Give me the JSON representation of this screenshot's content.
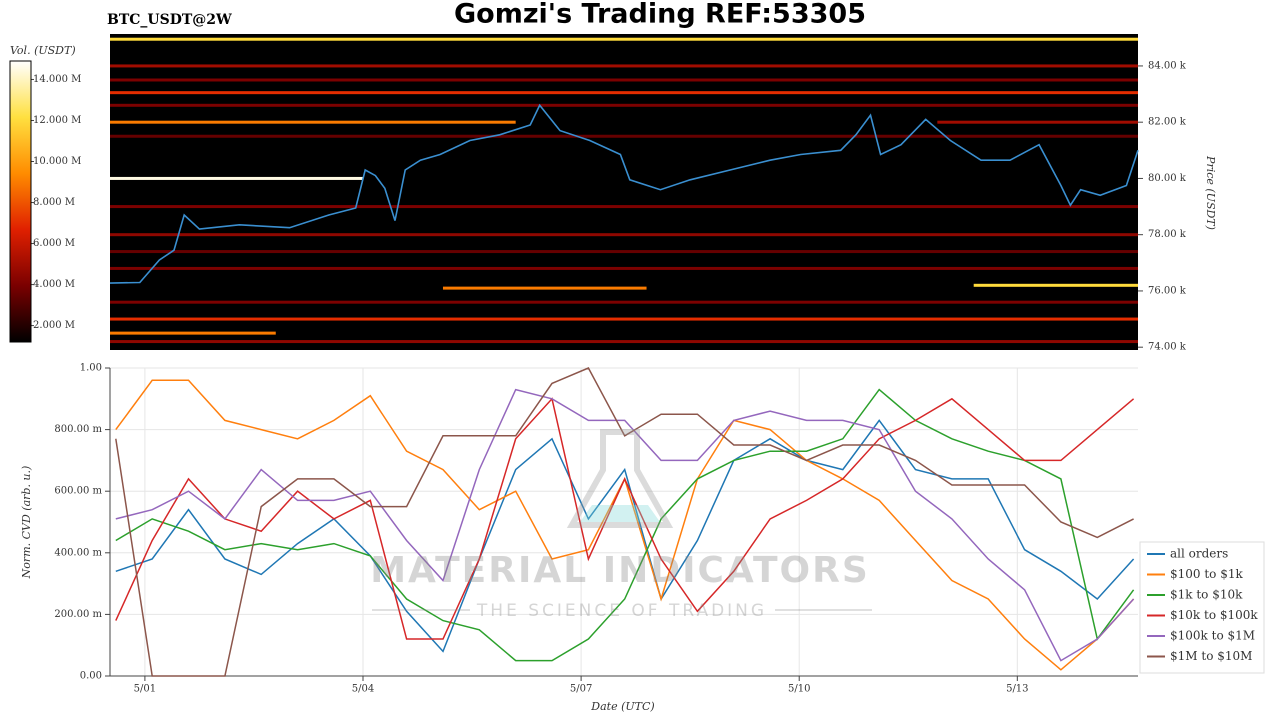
{
  "header": {
    "title": "Gomzi's Trading REF:53305"
  },
  "watermark": {
    "title": "MATERIAL INDICATORS",
    "subtitle": "THE SCIENCE OF TRADING"
  },
  "chart_data": [
    {
      "type": "heatmap",
      "title": "BTC_USDT@2W",
      "ylabel": "Price (USDT)",
      "xlim": [
        0.52,
        14.66
      ],
      "ylim": [
        73900,
        85100
      ],
      "yticks": [
        {
          "value": 74000,
          "label": "74.00 k"
        },
        {
          "value": 76000,
          "label": "76.00 k"
        },
        {
          "value": 78000,
          "label": "78.00 k"
        },
        {
          "value": 80000,
          "label": "80.00 k"
        },
        {
          "value": 82000,
          "label": "82.00 k"
        },
        {
          "value": 84000,
          "label": "84.00 k"
        }
      ],
      "x": [
        0.52,
        0.93,
        1.2,
        1.4,
        1.54,
        1.75,
        2.3,
        2.99,
        3.53,
        3.9,
        4.03,
        4.17,
        4.3,
        4.44,
        4.58,
        4.79,
        5.06,
        5.47,
        5.88,
        6.3,
        6.43,
        6.71,
        7.12,
        7.54,
        7.67,
        8.09,
        8.5,
        9.05,
        9.6,
        10.02,
        10.57,
        10.78,
        10.98,
        11.12,
        11.4,
        11.74,
        12.08,
        12.5,
        12.9,
        13.3,
        13.6,
        13.73,
        13.87,
        14.14,
        14.5,
        14.66
      ],
      "series": [
        {
          "color": "#3a8fd0",
          "values": [
            76280,
            76300,
            77100,
            77450,
            78700,
            78200,
            78350,
            78250,
            78700,
            78950,
            80300,
            80100,
            79650,
            78500,
            80300,
            80650,
            80850,
            81350,
            81550,
            81900,
            82600,
            81700,
            81350,
            80850,
            79950,
            79600,
            79950,
            80300,
            80650,
            80850,
            81000,
            81550,
            82250,
            80850,
            81200,
            82100,
            81350,
            80650,
            80650,
            81200,
            79750,
            79050,
            79600,
            79400,
            79750,
            81000
          ]
        }
      ],
      "levels": [
        {
          "price": 84950,
          "start": 0.52,
          "end": 14.66,
          "volume": 12000000
        },
        {
          "price": 84000,
          "start": 0.52,
          "end": 14.66,
          "volume": 5000000
        },
        {
          "price": 83500,
          "start": 0.52,
          "end": 14.66,
          "volume": 4000000
        },
        {
          "price": 83050,
          "start": 0.52,
          "end": 14.66,
          "volume": 7000000
        },
        {
          "price": 82600,
          "start": 0.52,
          "end": 14.66,
          "volume": 4000000
        },
        {
          "price": 82000,
          "start": 0.52,
          "end": 6.1,
          "volume": 9000000
        },
        {
          "price": 82000,
          "start": 11.9,
          "end": 14.66,
          "volume": 5000000
        },
        {
          "price": 81500,
          "start": 0.52,
          "end": 14.66,
          "volume": 3500000
        },
        {
          "price": 80000,
          "start": 0.52,
          "end": 4.0,
          "volume": 14500000
        },
        {
          "price": 79000,
          "start": 0.52,
          "end": 14.66,
          "volume": 4000000
        },
        {
          "price": 78000,
          "start": 0.52,
          "end": 14.66,
          "volume": 4500000
        },
        {
          "price": 77400,
          "start": 0.52,
          "end": 14.66,
          "volume": 3500000
        },
        {
          "price": 76800,
          "start": 0.52,
          "end": 14.66,
          "volume": 4000000
        },
        {
          "price": 76100,
          "start": 5.1,
          "end": 7.9,
          "volume": 9000000
        },
        {
          "price": 76200,
          "start": 12.4,
          "end": 14.66,
          "volume": 12000000
        },
        {
          "price": 75600,
          "start": 0.52,
          "end": 14.66,
          "volume": 4000000
        },
        {
          "price": 75000,
          "start": 0.52,
          "end": 14.66,
          "volume": 7000000
        },
        {
          "price": 74500,
          "start": 0.52,
          "end": 2.8,
          "volume": 9000000
        },
        {
          "price": 74200,
          "start": 0.52,
          "end": 14.66,
          "volume": 4500000
        }
      ],
      "colorbar": {
        "label": "Vol. (USDT)",
        "lim": [
          1200000,
          14900000
        ],
        "colors": [
          "#000000",
          "#7a0000",
          "#e02000",
          "#ff8c00",
          "#ffe040",
          "#ffffff"
        ],
        "ticks": [
          {
            "value": 2000000,
            "label": "2.000 M"
          },
          {
            "value": 4000000,
            "label": "4.000 M"
          },
          {
            "value": 6000000,
            "label": "6.000 M"
          },
          {
            "value": 8000000,
            "label": "8.000 M"
          },
          {
            "value": 10000000,
            "label": "10.000 M"
          },
          {
            "value": 12000000,
            "label": "12.000 M"
          },
          {
            "value": 14000000,
            "label": "14.000 M"
          }
        ]
      }
    },
    {
      "type": "line",
      "xlabel": "Date (UTC)",
      "ylabel": "Norm. CVD (arb. u.)",
      "grid": true,
      "legend": "lower right",
      "xlim": [
        0.52,
        14.66
      ],
      "ylim": [
        0,
        1
      ],
      "xticks": [
        {
          "value": 1,
          "label": "5/01"
        },
        {
          "value": 4,
          "label": "5/04"
        },
        {
          "value": 7,
          "label": "5/07"
        },
        {
          "value": 10,
          "label": "5/10"
        },
        {
          "value": 13,
          "label": "5/13"
        }
      ],
      "yticks": [
        {
          "value": 0,
          "label": "0.00"
        },
        {
          "value": 0.2,
          "label": "200.00 m"
        },
        {
          "value": 0.4,
          "label": "400.00 m"
        },
        {
          "value": 0.6,
          "label": "600.00 m"
        },
        {
          "value": 0.8,
          "label": "800.00 m"
        },
        {
          "value": 1,
          "label": "1.00"
        }
      ],
      "x": [
        0.6,
        1.1,
        1.6,
        2.1,
        2.6,
        3.1,
        3.6,
        4.1,
        4.6,
        5.1,
        5.6,
        6.1,
        6.6,
        7.1,
        7.6,
        8.1,
        8.6,
        9.1,
        9.6,
        10.1,
        10.6,
        11.1,
        11.6,
        12.1,
        12.6,
        13.1,
        13.6,
        14.1,
        14.6
      ],
      "series": [
        {
          "name": "all orders",
          "color": "#1f77b4",
          "values": [
            0.34,
            0.38,
            0.54,
            0.38,
            0.33,
            0.43,
            0.51,
            0.39,
            0.21,
            0.08,
            0.38,
            0.67,
            0.77,
            0.51,
            0.67,
            0.25,
            0.44,
            0.7,
            0.77,
            0.7,
            0.67,
            0.83,
            0.67,
            0.64,
            0.64,
            0.41,
            0.34,
            0.25,
            0.38
          ]
        },
        {
          "name": "$100 to $1k",
          "color": "#ff7f0e",
          "values": [
            0.8,
            0.96,
            0.96,
            0.83,
            0.8,
            0.77,
            0.83,
            0.91,
            0.73,
            0.67,
            0.54,
            0.6,
            0.38,
            0.41,
            0.64,
            0.25,
            0.64,
            0.83,
            0.8,
            0.7,
            0.64,
            0.57,
            0.44,
            0.31,
            0.25,
            0.12,
            0.02,
            0.12,
            0.25
          ]
        },
        {
          "name": "$1k to $10k",
          "color": "#2ca02c",
          "values": [
            0.44,
            0.51,
            0.47,
            0.41,
            0.43,
            0.41,
            0.43,
            0.39,
            0.25,
            0.18,
            0.15,
            0.05,
            0.05,
            0.12,
            0.25,
            0.51,
            0.64,
            0.7,
            0.73,
            0.73,
            0.77,
            0.93,
            0.83,
            0.77,
            0.73,
            0.7,
            0.64,
            0.12,
            0.28
          ]
        },
        {
          "name": "$10k to $100k",
          "color": "#d62728",
          "values": [
            0.18,
            0.44,
            0.64,
            0.51,
            0.47,
            0.6,
            0.51,
            0.57,
            0.12,
            0.12,
            0.38,
            0.77,
            0.9,
            0.38,
            0.64,
            0.38,
            0.21,
            0.34,
            0.51,
            0.57,
            0.64,
            0.77,
            0.83,
            0.9,
            0.8,
            0.7,
            0.7,
            0.8,
            0.9
          ]
        },
        {
          "name": "$100k to $1M",
          "color": "#9467bd",
          "values": [
            0.51,
            0.54,
            0.6,
            0.51,
            0.67,
            0.57,
            0.57,
            0.6,
            0.44,
            0.31,
            0.67,
            0.93,
            0.9,
            0.83,
            0.83,
            0.7,
            0.7,
            0.83,
            0.86,
            0.83,
            0.83,
            0.8,
            0.6,
            0.51,
            0.38,
            0.28,
            0.05,
            0.12,
            0.25
          ]
        },
        {
          "name": "$1M to $10M",
          "color": "#8c564b",
          "values": [
            0.77,
            0,
            0,
            0,
            0.55,
            0.64,
            0.64,
            0.55,
            0.55,
            0.78,
            0.78,
            0.78,
            0.95,
            1,
            0.78,
            0.85,
            0.85,
            0.75,
            0.75,
            0.7,
            0.75,
            0.75,
            0.7,
            0.62,
            0.62,
            0.62,
            0.5,
            0.45,
            0.51
          ]
        }
      ]
    }
  ]
}
